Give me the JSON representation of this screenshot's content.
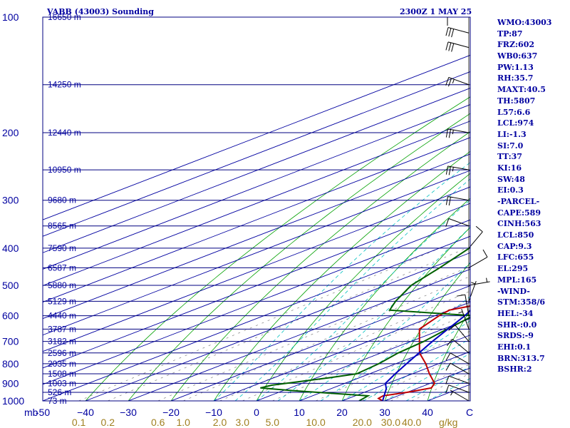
{
  "chart_data": {
    "type": "skew-t",
    "title": "VABB (43003) Sounding",
    "datetime": "2300Z  1 MAY 25",
    "pressure_unit": "mb",
    "mixing_ratio_unit": "g/kg",
    "pressure_levels": [
      100,
      200,
      300,
      400,
      500,
      600,
      700,
      800,
      900,
      1000
    ],
    "temperature_ticks": [
      -50,
      -40,
      -30,
      -20,
      -10,
      0,
      10,
      20,
      30,
      40
    ],
    "temperature_tick_labels": [
      "-50",
      "−40",
      "−30",
      "−20",
      "−10",
      "0",
      "10",
      "20",
      "30",
      "40"
    ],
    "temperature_axis_marker": "C",
    "mixing_ratio_labels": [
      {
        "label": "0.1",
        "w": 0.1
      },
      {
        "label": "0.2",
        "w": 0.2
      },
      {
        "label": "0.6",
        "w": 0.6
      },
      {
        "label": "1.0",
        "w": 1.0
      },
      {
        "label": "2.0",
        "w": 2.0
      },
      {
        "label": "3.0",
        "w": 3.0
      },
      {
        "label": "5.0",
        "w": 5.0
      },
      {
        "label": "10.0",
        "w": 10.0
      },
      {
        "label": "20.0",
        "w": 20.0
      },
      {
        "label": "30.0",
        "w": 30.0
      },
      {
        "label": "40.0",
        "w": 40.0
      }
    ],
    "height_labels": [
      {
        "p": 100,
        "label": "16650 m"
      },
      {
        "p": 150,
        "label": "14250 m"
      },
      {
        "p": 200,
        "label": "12440 m"
      },
      {
        "p": 250,
        "label": "10950 m"
      },
      {
        "p": 300,
        "label": "9680 m"
      },
      {
        "p": 350,
        "label": "8565 m"
      },
      {
        "p": 400,
        "label": "7590 m"
      },
      {
        "p": 450,
        "label": "6587 m"
      },
      {
        "p": 500,
        "label": "5880 m"
      },
      {
        "p": 550,
        "label": "5129 m"
      },
      {
        "p": 600,
        "label": "4440 m"
      },
      {
        "p": 650,
        "label": "3787 m"
      },
      {
        "p": 700,
        "label": "3182 m"
      },
      {
        "p": 750,
        "label": "2596 m"
      },
      {
        "p": 800,
        "label": "2035 m"
      },
      {
        "p": 850,
        "label": "1508 m"
      },
      {
        "p": 900,
        "label": "1003 m"
      },
      {
        "p": 950,
        "label": "526 m"
      },
      {
        "p": 1000,
        "label": "73 m"
      }
    ],
    "series": [
      {
        "color": "#c00000",
        "points": [
          [
            1000,
            29.5
          ],
          [
            985,
            27.0
          ],
          [
            970,
            26.5
          ],
          [
            950,
            30.0
          ],
          [
            925,
            33.0
          ],
          [
            900,
            31.0
          ],
          [
            850,
            24.0
          ],
          [
            800,
            17.0
          ],
          [
            750,
            9.0
          ],
          [
            700,
            2.0
          ],
          [
            650,
            -5.5
          ],
          [
            600,
            -9.0
          ],
          [
            580,
            -10.0
          ],
          [
            560,
            -6.5
          ],
          [
            500,
            -9.0
          ],
          [
            450,
            -16.0
          ],
          [
            400,
            -23.0
          ],
          [
            350,
            -32.0
          ],
          [
            300,
            -42.0
          ],
          [
            250,
            -53.0
          ],
          [
            200,
            -63.0
          ],
          [
            150,
            -75.0
          ],
          [
            100,
            -85.0
          ]
        ]
      },
      {
        "color": "#006000",
        "points": [
          [
            1000,
            24.0
          ],
          [
            970,
            23.0
          ],
          [
            940,
            2.0
          ],
          [
            925,
            -7.0
          ],
          [
            910,
            -6.0
          ],
          [
            870,
            3.0
          ],
          [
            850,
            7.0
          ],
          [
            800,
            6.0
          ],
          [
            750,
            4.0
          ],
          [
            700,
            3.0
          ],
          [
            650,
            1.0
          ],
          [
            600,
            -1.0
          ],
          [
            580,
            -24.0
          ],
          [
            550,
            -28.0
          ],
          [
            500,
            -34.0
          ],
          [
            450,
            -38.0
          ],
          [
            400,
            -43.0
          ],
          [
            370,
            -43.0
          ],
          [
            300,
            -70.0
          ],
          [
            250,
            -75.0
          ],
          [
            200,
            -78.0
          ],
          [
            150,
            -82.0
          ],
          [
            100,
            -84.0
          ]
        ]
      },
      {
        "color": "#0000c0",
        "points": [
          [
            1000,
            29.5
          ],
          [
            930,
            23.0
          ],
          [
            900,
            19.5
          ],
          [
            850,
            16.0
          ],
          [
            800,
            12.5
          ],
          [
            700,
            5.0
          ],
          [
            600,
            -3.0
          ],
          [
            500,
            -14.0
          ],
          [
            400,
            -26.0
          ],
          [
            300,
            -44.0
          ],
          [
            200,
            -60.0
          ],
          [
            150,
            -73.0
          ],
          [
            100,
            -88.0
          ]
        ]
      }
    ],
    "wind_barbs": [
      {
        "p": 1000,
        "dir": 300,
        "spd": 5
      },
      {
        "p": 950,
        "dir": 290,
        "spd": 10
      },
      {
        "p": 900,
        "dir": 290,
        "spd": 10
      },
      {
        "p": 850,
        "dir": 300,
        "spd": 10
      },
      {
        "p": 800,
        "dir": 300,
        "spd": 10
      },
      {
        "p": 750,
        "dir": 310,
        "spd": 10
      },
      {
        "p": 700,
        "dir": 320,
        "spd": 10
      },
      {
        "p": 650,
        "dir": 340,
        "spd": 5
      },
      {
        "p": 600,
        "dir": 350,
        "spd": 10
      },
      {
        "p": 550,
        "dir": 20,
        "spd": 5
      },
      {
        "p": 500,
        "dir": 80,
        "spd": 5
      },
      {
        "p": 450,
        "dir": 60,
        "spd": 10
      },
      {
        "p": 400,
        "dir": 40,
        "spd": 10
      },
      {
        "p": 350,
        "dir": 290,
        "spd": 10
      },
      {
        "p": 300,
        "dir": 280,
        "spd": 20
      },
      {
        "p": 250,
        "dir": 280,
        "spd": 25
      },
      {
        "p": 200,
        "dir": 280,
        "spd": 25
      },
      {
        "p": 150,
        "dir": 290,
        "spd": 25
      },
      {
        "p": 120,
        "dir": 285,
        "spd": 30
      },
      {
        "p": 110,
        "dir": 285,
        "spd": 30
      },
      {
        "p": 100,
        "dir": 270,
        "spd": 10
      }
    ],
    "grid_colors": {
      "isobar": "#000080",
      "isotherm": "#0000a0",
      "dry_adiabat": "#00a000",
      "moist_adiabat": "#00c0c0",
      "mixing_ratio": "#808080",
      "plot_bg": "#ffffff"
    }
  },
  "indices": [
    "WMO:43003",
    "TP:87",
    "FRZ:602",
    "WB0:637",
    "PW:1.13",
    "RH:35.7",
    "MAXT:40.5",
    "TH:5807",
    "L57:6.6",
    "LCL:974",
    "LI:-1.3",
    "SI:7.0",
    "TT:37",
    "KI:16",
    "SW:48",
    "EI:0.3",
    "-PARCEL-",
    "CAPE:589",
    "CINH:563",
    "LCL:850",
    "CAP:9.3",
    "LFC:655",
    "EL:295",
    "MPL:165",
    "-WIND-",
    "STM:358/6",
    "HEL:-34",
    "SHR-:0.0",
    "SRDS:-9",
    "EHI:0.1",
    "BRN:313.7",
    "BSHR:2"
  ]
}
